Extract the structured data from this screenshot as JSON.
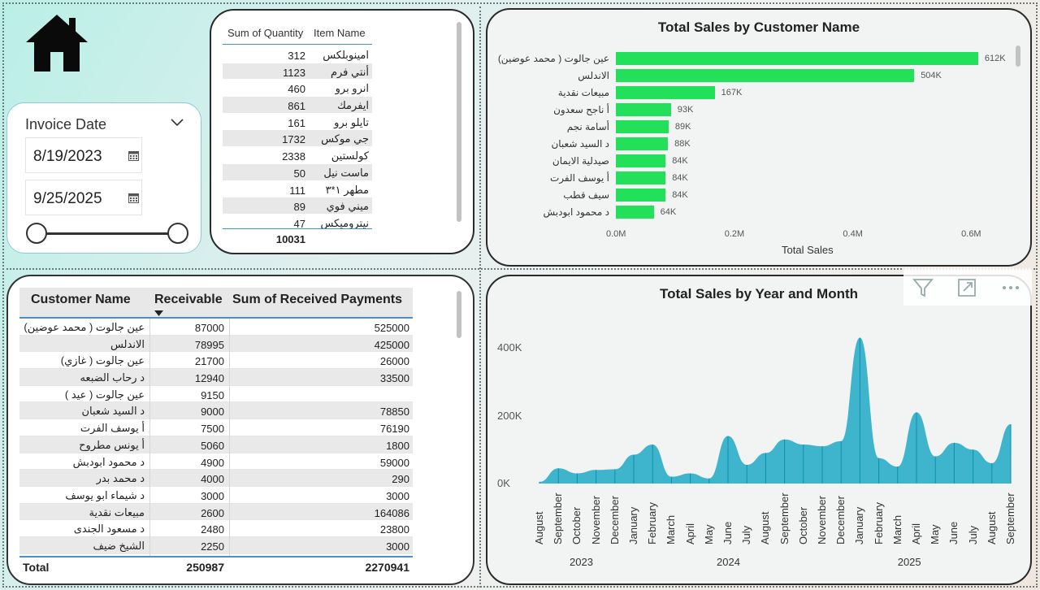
{
  "slicer": {
    "title": "Invoice Date",
    "start_date": "8/19/2023",
    "end_date": "9/25/2025"
  },
  "qty_table": {
    "headers": [
      "Sum of Quantity",
      "Item Name"
    ],
    "rows": [
      {
        "qty": "312",
        "name": "امينوبلكس"
      },
      {
        "qty": "1123",
        "name": "أنتي فرم"
      },
      {
        "qty": "460",
        "name": "انرو برو"
      },
      {
        "qty": "861",
        "name": "ايفرمك"
      },
      {
        "qty": "161",
        "name": "تايلو برو"
      },
      {
        "qty": "1732",
        "name": "جي موكس"
      },
      {
        "qty": "2338",
        "name": "كولستين"
      },
      {
        "qty": "50",
        "name": "ماست نيل"
      },
      {
        "qty": "111",
        "name": "مطهر ١*٣"
      },
      {
        "qty": "89",
        "name": "ميني فوي"
      },
      {
        "qty": "47",
        "name": "نيتروميكس"
      }
    ],
    "total": "10031"
  },
  "bar_chart": {
    "title": "Total Sales by Customer Name",
    "x_axis_title": "Total Sales",
    "x_ticks": [
      "0.0M",
      "0.2M",
      "0.4M",
      "0.6M"
    ],
    "bar_color": "#22e05a"
  },
  "customers_table": {
    "headers": [
      "Customer Name",
      "Receivable",
      "Sum of Received Payments"
    ],
    "rows": [
      {
        "name": "عين جالوت ( محمد عوضين)",
        "receivable": "87000",
        "received": "525000"
      },
      {
        "name": "الاندلس",
        "receivable": "78995",
        "received": "425000"
      },
      {
        "name": "عين جالوت ( غازي)",
        "receivable": "21700",
        "received": "26000"
      },
      {
        "name": "د رحاب الضبعه",
        "receivable": "12940",
        "received": "33500"
      },
      {
        "name": "عين جالوت ( عيد )",
        "receivable": "9150",
        "received": ""
      },
      {
        "name": "د السيد شعبان",
        "receivable": "9000",
        "received": "78850"
      },
      {
        "name": "أ يوسف الفرت",
        "receivable": "7500",
        "received": "76190"
      },
      {
        "name": "أ يونس مطروح",
        "receivable": "5060",
        "received": "1800"
      },
      {
        "name": "د محمود ابودبش",
        "receivable": "4900",
        "received": "59000"
      },
      {
        "name": "د محمد بدر",
        "receivable": "4000",
        "received": "290"
      },
      {
        "name": "د شيماء ابو يوسف",
        "receivable": "3000",
        "received": "3000"
      },
      {
        "name": "مبيعات نقدية",
        "receivable": "2600",
        "received": "164086"
      },
      {
        "name": "د مسعود الجندى",
        "receivable": "2480",
        "received": "23800"
      },
      {
        "name": "الشيخ ضيف",
        "receivable": "2250",
        "received": "3000"
      }
    ],
    "total_label": "Total",
    "total_receivable": "250987",
    "total_received": "2270941"
  },
  "area_chart": {
    "title": "Total Sales by Year and Month",
    "y_ticks": [
      "400K",
      "200K",
      "0K"
    ],
    "months": [
      "August",
      "September",
      "October",
      "November",
      "December",
      "January",
      "February",
      "March",
      "April",
      "May",
      "June",
      "July",
      "August",
      "September",
      "October",
      "November",
      "December",
      "January",
      "February",
      "March",
      "April",
      "May",
      "June",
      "July",
      "August",
      "September"
    ],
    "years": [
      "2023",
      "2024",
      "2025"
    ],
    "color": "#1fa9c6"
  },
  "chart_data": [
    {
      "type": "bar",
      "title": "Total Sales by Customer Name",
      "xlabel": "Total Sales",
      "categories": [
        "عين جالوت ( محمد عوضين)",
        "الاندلس",
        "مبيعات نقدية",
        "أ ناجح سعدون",
        "أسامة نجم",
        "د السيد شعبان",
        "صيدلية الايمان",
        "أ يوسف الفرت",
        "سيف قطب",
        "د محمود ابودبش"
      ],
      "values": [
        612000,
        504000,
        167000,
        93000,
        89000,
        88000,
        84000,
        84000,
        84000,
        64000
      ],
      "value_labels": [
        "612K",
        "504K",
        "167K",
        "93K",
        "89K",
        "88K",
        "84K",
        "84K",
        "84K",
        "64K"
      ],
      "xlim": [
        0,
        700000
      ],
      "orientation": "horizontal"
    },
    {
      "type": "area",
      "title": "Total Sales by Year and Month",
      "x": [
        "2023-08",
        "2023-09",
        "2023-10",
        "2023-11",
        "2023-12",
        "2024-01",
        "2024-02",
        "2024-03",
        "2024-04",
        "2024-05",
        "2024-06",
        "2024-07",
        "2024-08",
        "2024-09",
        "2024-10",
        "2024-11",
        "2024-12",
        "2025-01",
        "2025-02",
        "2025-03",
        "2025-04",
        "2025-05",
        "2025-06",
        "2025-07",
        "2025-08",
        "2025-09"
      ],
      "values": [
        5000,
        45000,
        30000,
        40000,
        42000,
        85000,
        115000,
        20000,
        30000,
        15000,
        140000,
        55000,
        90000,
        130000,
        115000,
        110000,
        125000,
        430000,
        75000,
        50000,
        210000,
        80000,
        120000,
        100000,
        60000,
        175000
      ],
      "ylim": [
        0,
        450000
      ]
    }
  ]
}
